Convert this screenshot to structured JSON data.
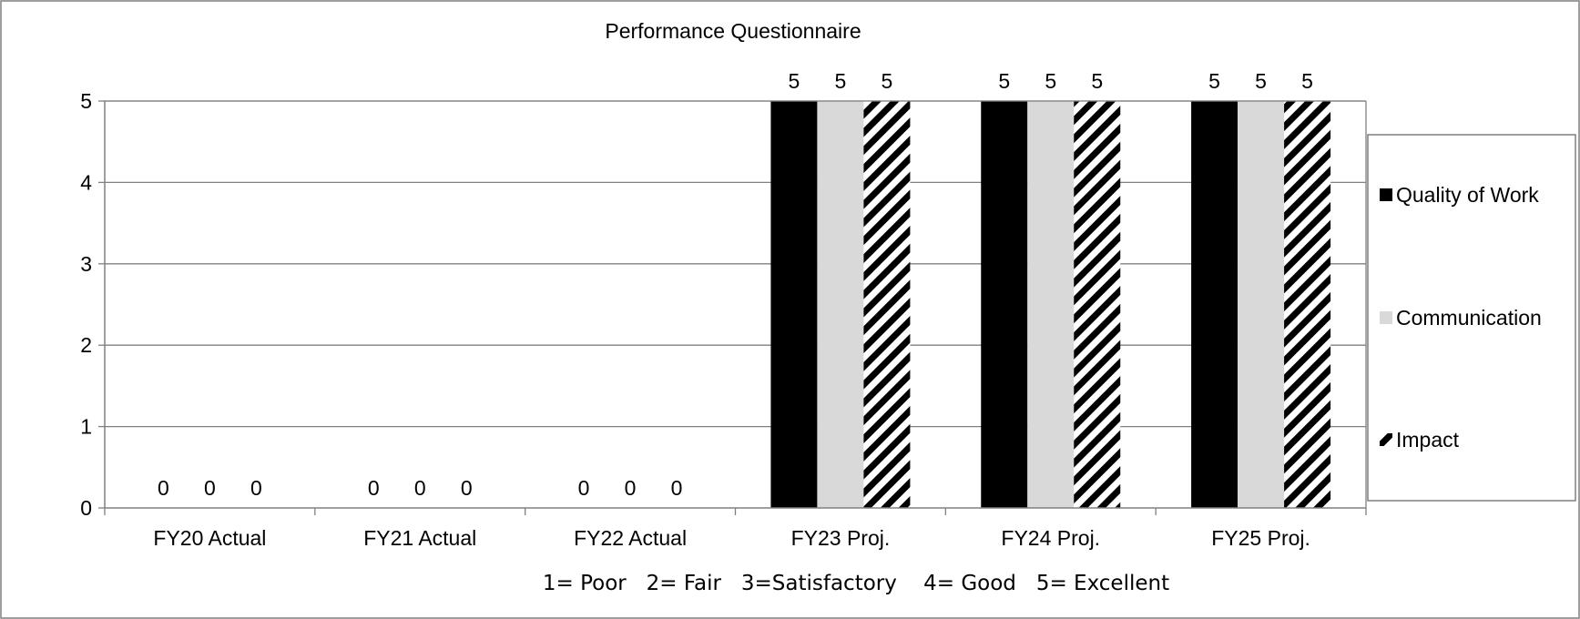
{
  "chart_data": {
    "type": "bar",
    "title": "Performance Questionnaire",
    "categories": [
      "FY20 Actual",
      "FY21 Actual",
      "FY22 Actual",
      "FY23 Proj.",
      "FY24 Proj.",
      "FY25 Proj."
    ],
    "series": [
      {
        "name": "Quality of Work",
        "values": [
          0,
          0,
          0,
          5,
          5,
          5
        ],
        "fill": "#000000"
      },
      {
        "name": "Communication",
        "values": [
          0,
          0,
          0,
          5,
          5,
          5
        ],
        "fill": "#d9d9d9"
      },
      {
        "name": "Impact",
        "values": [
          0,
          0,
          0,
          5,
          5,
          5
        ],
        "fill": "diagonal-stripe"
      }
    ],
    "ylim": [
      0,
      5
    ],
    "yticks": [
      0,
      1,
      2,
      3,
      4,
      5
    ],
    "xlabel": "",
    "ylabel": "",
    "grid": true,
    "legend": "right",
    "note": "1= Poor   2= Fair   3=Satisfactory    4= Good   5= Excellent"
  }
}
